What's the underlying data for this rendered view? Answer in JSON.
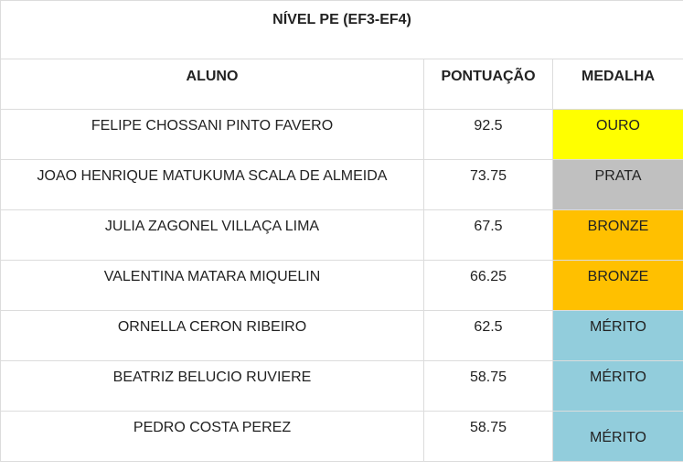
{
  "title": "NÍVEL PE (EF3-EF4)",
  "headers": {
    "student": "ALUNO",
    "score": "PONTUAÇÃO",
    "medal": "MEDALHA"
  },
  "rows": [
    {
      "name": "FELIPE CHOSSANI PINTO FAVERO",
      "score": "92.5",
      "medal": "OURO",
      "medal_color": "#ffff00"
    },
    {
      "name": "JOAO HENRIQUE MATUKUMA SCALA DE ALMEIDA",
      "score": "73.75",
      "medal": "PRATA",
      "medal_color": "#c0c0c0"
    },
    {
      "name": "JULIA ZAGONEL VILLAÇA LIMA",
      "score": "67.5",
      "medal": "BRONZE",
      "medal_color": "#ffc000"
    },
    {
      "name": "VALENTINA MATARA MIQUELIN",
      "score": "66.25",
      "medal": "BRONZE",
      "medal_color": "#ffc000"
    },
    {
      "name": "ORNELLA CERON RIBEIRO",
      "score": "62.5",
      "medal": "MÉRITO",
      "medal_color": "#92cddc"
    },
    {
      "name": "BEATRIZ BELUCIO RUVIERE",
      "score": "58.75",
      "medal": "MÉRITO",
      "medal_color": "#92cddc"
    },
    {
      "name": "PEDRO COSTA PEREZ",
      "score": "58.75",
      "medal": "MÉRITO",
      "medal_color": "#92cddc"
    }
  ]
}
